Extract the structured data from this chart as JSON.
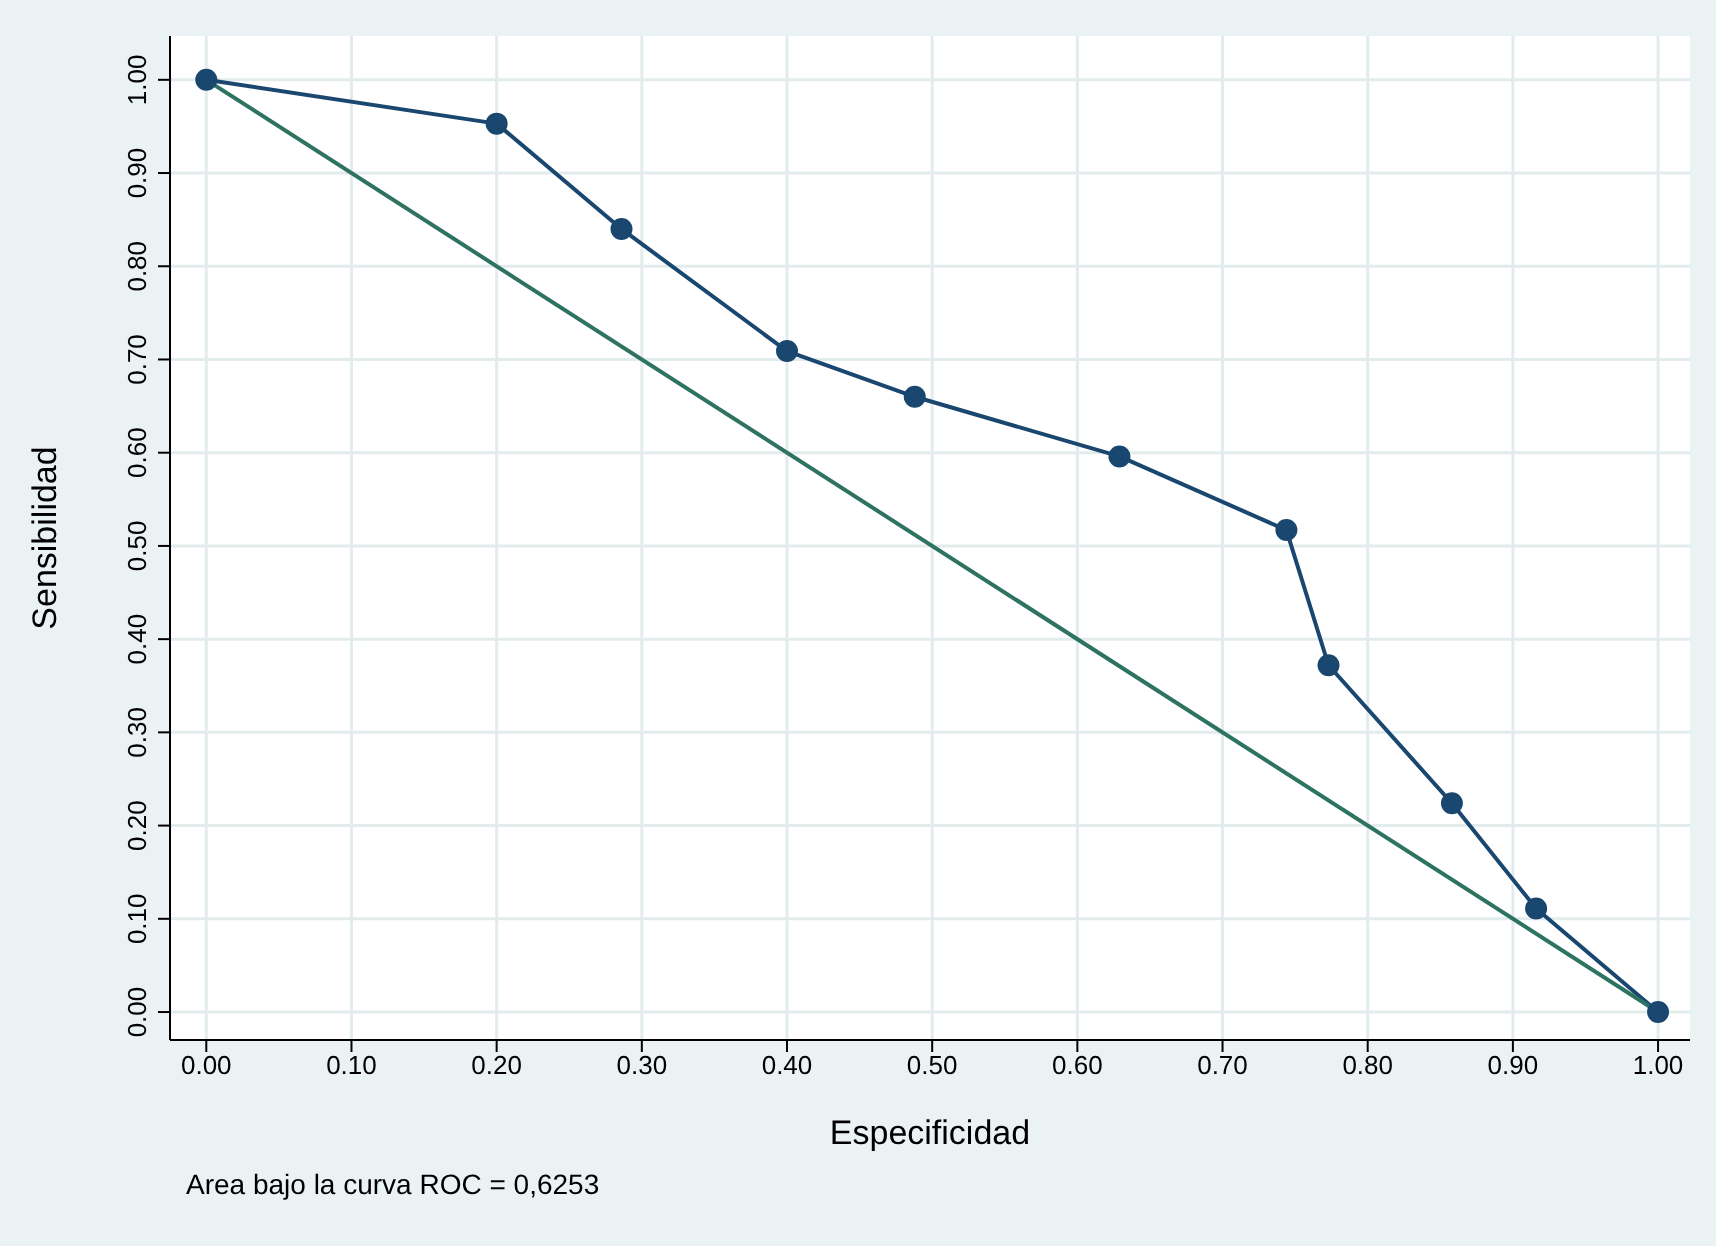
{
  "chart_data": {
    "type": "line",
    "xlabel": "Especificidad",
    "ylabel": "Sensibilidad",
    "xlim": [
      -0.025,
      1.022
    ],
    "ylim": [
      -0.03,
      1.047
    ],
    "xticks": [
      {
        "value": 0,
        "label": "0.00"
      },
      {
        "value": 0.1,
        "label": "0.10"
      },
      {
        "value": 0.2,
        "label": "0.20"
      },
      {
        "value": 0.3,
        "label": "0.30"
      },
      {
        "value": 0.4,
        "label": "0.40"
      },
      {
        "value": 0.5,
        "label": "0.50"
      },
      {
        "value": 0.6,
        "label": "0.60"
      },
      {
        "value": 0.7,
        "label": "0.70"
      },
      {
        "value": 0.8,
        "label": "0.80"
      },
      {
        "value": 0.9,
        "label": "0.90"
      },
      {
        "value": 1,
        "label": "1.00"
      }
    ],
    "yticks": [
      {
        "value": 0,
        "label": "0.00"
      },
      {
        "value": 0.1,
        "label": "0.10"
      },
      {
        "value": 0.2,
        "label": "0.20"
      },
      {
        "value": 0.3,
        "label": "0.30"
      },
      {
        "value": 0.4,
        "label": "0.40"
      },
      {
        "value": 0.5,
        "label": "0.50"
      },
      {
        "value": 0.6,
        "label": "0.60"
      },
      {
        "value": 0.7,
        "label": "0.70"
      },
      {
        "value": 0.8,
        "label": "0.80"
      },
      {
        "value": 0.9,
        "label": "0.90"
      },
      {
        "value": 1,
        "label": "1.00"
      }
    ],
    "grid": true,
    "series": [
      {
        "color": "#1a476f",
        "marker": "circle",
        "x": [
          0,
          0.2,
          0.286,
          0.4,
          0.488,
          0.629,
          0.744,
          0.773,
          0.858,
          0.916,
          1
        ],
        "values": [
          1,
          0.953,
          0.84,
          0.709,
          0.66,
          0.596,
          0.517,
          0.372,
          0.224,
          0.111,
          0
        ]
      },
      {
        "color": "#2e7361",
        "marker": "none",
        "x": [
          0,
          1
        ],
        "values": [
          1,
          0
        ]
      }
    ],
    "annotations": [
      "Area bajo la curva ROC = 0,6253"
    ]
  }
}
